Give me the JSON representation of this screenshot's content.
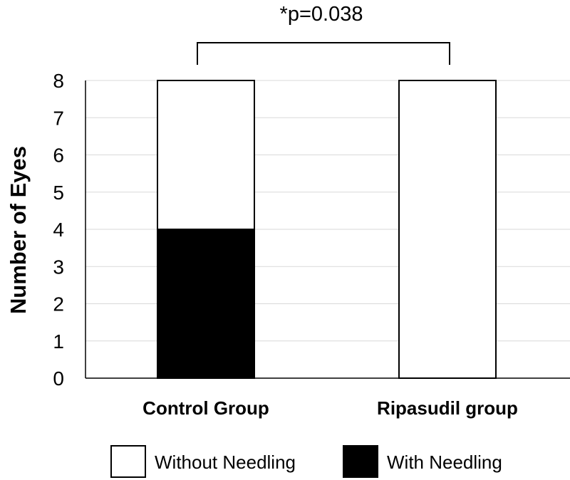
{
  "chart_data": {
    "type": "bar",
    "stacked": true,
    "categories": [
      "Control Group",
      "Ripasudil group"
    ],
    "series": [
      {
        "name": "With Needling",
        "values": [
          4,
          0
        ],
        "color": "#000000"
      },
      {
        "name": "Without Needling",
        "values": [
          4,
          8
        ],
        "color": "#ffffff"
      }
    ],
    "ylabel": "Number of Eyes",
    "xlabel": "",
    "ylim": [
      0,
      8
    ],
    "yticks": [
      0,
      1,
      2,
      3,
      4,
      5,
      6,
      7,
      8
    ],
    "grid": true,
    "legend_position": "bottom",
    "legend": [
      "Without Needling",
      "With Needling"
    ],
    "annotation": "*p=0.038"
  }
}
